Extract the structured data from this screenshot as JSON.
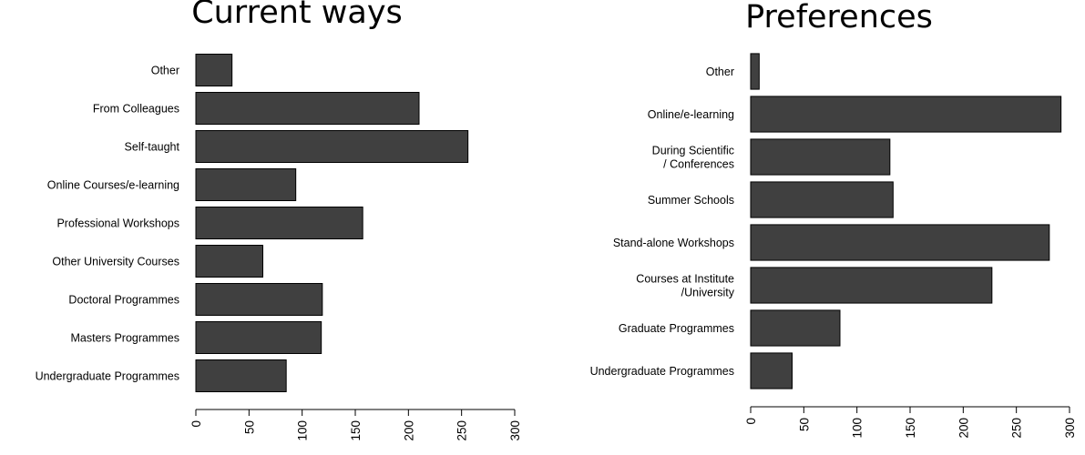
{
  "chart_data": [
    {
      "type": "bar",
      "orientation": "horizontal",
      "title": "Current ways",
      "categories": [
        "Undergraduate Programmes",
        "Masters Programmes",
        "Doctoral Programmes",
        "Other University Courses",
        "Professional Workshops",
        "Online Courses/e-learning",
        "Self-taught",
        "From Colleagues",
        "Other"
      ],
      "values": [
        85,
        118,
        119,
        63,
        157,
        94,
        256,
        210,
        34
      ],
      "xlim": [
        0,
        300
      ],
      "xticks": [
        0,
        50,
        100,
        150,
        200,
        250,
        300
      ],
      "xlabel": "",
      "ylabel": "",
      "bar_color": "#404040",
      "grid": false
    },
    {
      "type": "bar",
      "orientation": "horizontal",
      "title": "Preferences",
      "categories": [
        "Undergraduate Programmes",
        "Graduate Programmes",
        "Courses at Institute\n/University",
        "Stand-alone Workshops",
        "Summer Schools",
        "During Scientific\n/ Conferences",
        "Online/e-learning",
        "Other"
      ],
      "values": [
        39,
        84,
        227,
        281,
        134,
        131,
        292,
        8
      ],
      "xlim": [
        0,
        300
      ],
      "xticks": [
        0,
        50,
        100,
        150,
        200,
        250,
        300
      ],
      "xlabel": "",
      "ylabel": "",
      "bar_color": "#404040",
      "grid": false
    }
  ]
}
